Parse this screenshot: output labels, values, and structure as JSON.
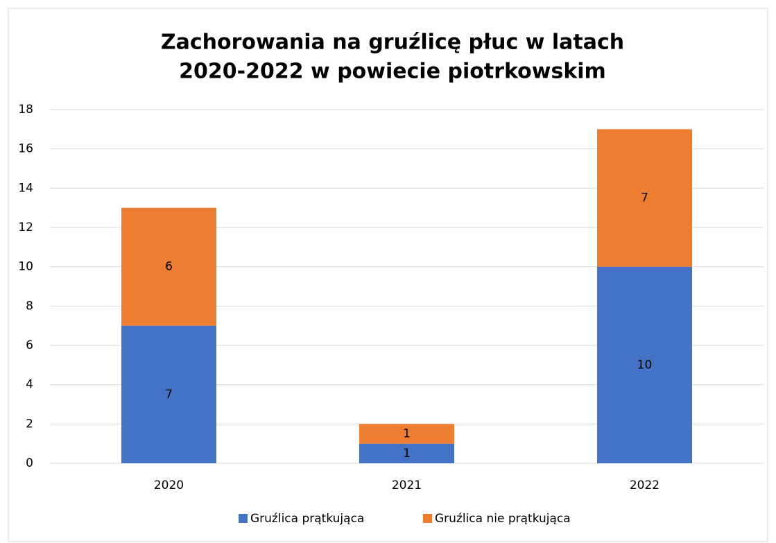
{
  "chart_data": {
    "type": "stacked_bar",
    "title": [
      "Zachorowania na gruźlicę płuc w latach",
      "2020-2022 w powiecie piotrkowskim"
    ],
    "categories": [
      "2020",
      "2021",
      "2022"
    ],
    "series": [
      {
        "name": "Gruźlica prątkująca",
        "color": "#4472c4",
        "values": [
          7,
          1,
          10
        ]
      },
      {
        "name": "Gruźlica nie prątkująca",
        "color": "#ed7d31",
        "values": [
          6,
          1,
          7
        ]
      }
    ],
    "ylim": [
      0,
      18
    ],
    "yticks": [
      0,
      2,
      4,
      6,
      8,
      10,
      12,
      14,
      16,
      18
    ],
    "grid": true,
    "data_labels": true,
    "legend": "bottom"
  }
}
